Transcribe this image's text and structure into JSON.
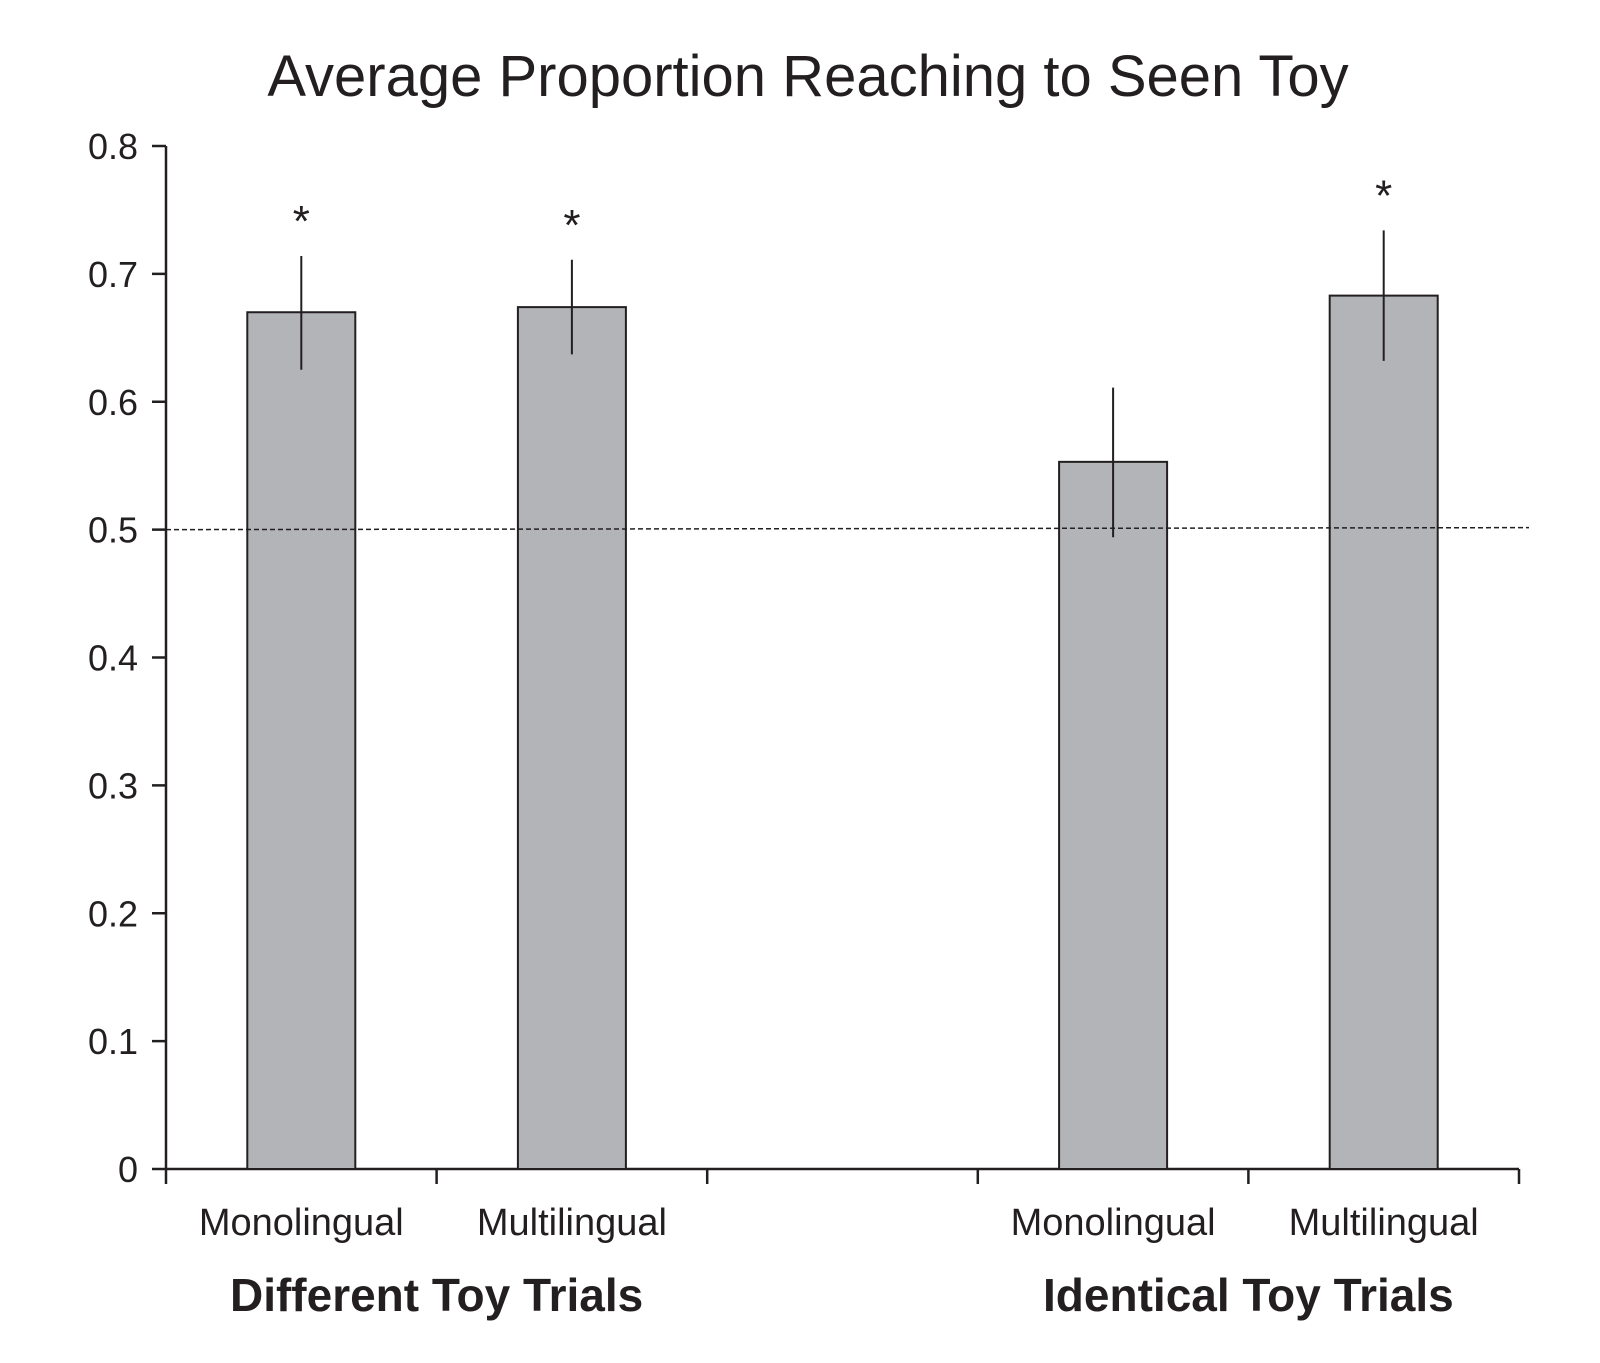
{
  "chart_data": {
    "type": "bar",
    "title": "Average Proportion Reaching to Seen Toy",
    "xlabel": "",
    "ylabel": "",
    "ylim": [
      0,
      0.8
    ],
    "yticks": [
      "0",
      "0.1",
      "0.2",
      "0.3",
      "0.4",
      "0.5",
      "0.6",
      "0.7",
      "0.8"
    ],
    "grid": false,
    "legend": "none",
    "reference_line": {
      "y": 0.5,
      "style": "dashed"
    },
    "bar_color": "#b3b4b8",
    "groups": [
      {
        "label": "Different Toy Trials",
        "categories": [
          "Monolingual",
          "Multilingual"
        ]
      },
      {
        "label": "Identical Toy Trials",
        "categories": [
          "Monolingual",
          "Multilingual"
        ]
      }
    ],
    "bars": [
      {
        "group": "Different Toy Trials",
        "category": "Monolingual",
        "value": 0.67,
        "error": [
          0.625,
          0.714
        ],
        "marker": "*"
      },
      {
        "group": "Different Toy Trials",
        "category": "Multilingual",
        "value": 0.674,
        "error": [
          0.637,
          0.711
        ],
        "marker": "*"
      },
      {
        "group": "Identical Toy Trials",
        "category": "Monolingual",
        "value": 0.553,
        "error": [
          0.494,
          0.611
        ],
        "marker": ""
      },
      {
        "group": "Identical Toy Trials",
        "category": "Multilingual",
        "value": 0.683,
        "error": [
          0.632,
          0.734
        ],
        "marker": "*"
      }
    ]
  }
}
